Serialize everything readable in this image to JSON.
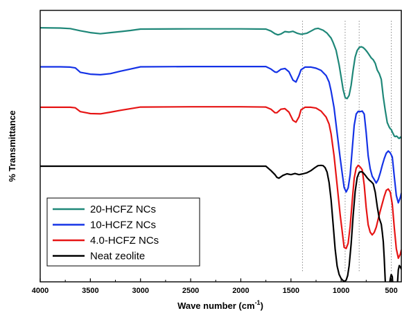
{
  "chart_data": {
    "type": "line",
    "xlabel": "Wave number (cm⁻¹)",
    "ylabel": "% Transmittance",
    "xlim": [
      4000,
      400
    ],
    "x_reversed": true,
    "x_ticks": [
      4000,
      3500,
      3000,
      2500,
      2000,
      1500,
      1000,
      500
    ],
    "y_ticks_shown": false,
    "grid": false,
    "legend": {
      "position": "bottom-left",
      "entries": [
        "20-HCFZ NCs",
        "10-HCFZ NCs",
        "4.0-HCFZ NCs",
        "Neat zeolite"
      ]
    },
    "reference_lines": [
      1385,
      960,
      820,
      500
    ],
    "y_units": "relative transmittance (top of plot = 100, bottom = 0)",
    "series": [
      {
        "name": "20-HCFZ NCs",
        "color": "#1e8778",
        "x": [
          4000,
          3800,
          3700,
          3600,
          3500,
          3400,
          3300,
          3200,
          3100,
          3000,
          2500,
          2000,
          1750,
          1700,
          1660,
          1630,
          1600,
          1560,
          1520,
          1480,
          1440,
          1400,
          1380,
          1340,
          1300,
          1260,
          1230,
          1180,
          1140,
          1100,
          1080,
          1050,
          1020,
          1000,
          980,
          960,
          940,
          920,
          900,
          880,
          860,
          840,
          820,
          800,
          780,
          760,
          740,
          720,
          700,
          680,
          660,
          640,
          620,
          600,
          580,
          560,
          540,
          520,
          510,
          500,
          490,
          480,
          470,
          460,
          450,
          440,
          430,
          420,
          410,
          400
        ],
        "y": [
          93.6,
          93.5,
          93.3,
          92.5,
          91.8,
          91.4,
          91.8,
          92.2,
          92.6,
          93.1,
          93.2,
          93.2,
          93.1,
          92.4,
          91.4,
          91.0,
          91.3,
          92.2,
          92.0,
          92.3,
          91.6,
          91.2,
          91.3,
          91.6,
          92.4,
          93.2,
          93.4,
          92.7,
          91.6,
          89.8,
          88.2,
          85.3,
          79.9,
          75.4,
          70.8,
          67.9,
          67.5,
          68.7,
          72.4,
          78.0,
          82.8,
          85.2,
          86.3,
          86.6,
          86.3,
          85.6,
          84.7,
          83.6,
          82.5,
          81.8,
          80.5,
          78.0,
          76.7,
          74.6,
          68.1,
          63.2,
          58.7,
          57.0,
          56.4,
          56.1,
          55.2,
          54.5,
          53.7,
          53.5,
          53.7,
          53.5,
          53.0,
          52.8,
          53.3,
          53.0
        ]
      },
      {
        "name": "10-HCFZ NCs",
        "color": "#1432e6",
        "x": [
          4000,
          3800,
          3700,
          3650,
          3600,
          3500,
          3400,
          3300,
          3200,
          3100,
          3000,
          2500,
          2000,
          1750,
          1700,
          1660,
          1640,
          1600,
          1560,
          1520,
          1480,
          1450,
          1420,
          1400,
          1360,
          1300,
          1250,
          1200,
          1150,
          1120,
          1100,
          1070,
          1040,
          1010,
          990,
          970,
          950,
          930,
          910,
          890,
          870,
          850,
          830,
          810,
          790,
          770,
          750,
          730,
          710,
          690,
          670,
          650,
          630,
          610,
          590,
          570,
          550,
          530,
          510,
          490,
          470,
          450,
          430,
          410,
          400
        ],
        "y": [
          79.2,
          79.2,
          79.1,
          78.8,
          77.2,
          76.5,
          76.3,
          76.7,
          77.6,
          78.4,
          79.2,
          79.3,
          79.3,
          79.3,
          78.4,
          77.3,
          77.2,
          78.3,
          78.6,
          77.4,
          74.3,
          73.6,
          76.1,
          78.1,
          79.1,
          79.1,
          78.7,
          77.9,
          76.0,
          73.6,
          70.3,
          64.1,
          54.8,
          45.8,
          40.2,
          34.8,
          33.1,
          34.6,
          39.5,
          48.6,
          57.6,
          61.8,
          62.8,
          62.7,
          62.9,
          61.8,
          55.0,
          46.4,
          41.7,
          38.9,
          37.7,
          36.4,
          37.7,
          40.1,
          42.9,
          45.4,
          47.4,
          48.2,
          47.5,
          46.0,
          38.7,
          31.8,
          29.1,
          31.1,
          32.6
        ]
      },
      {
        "name": "4.0-HCFZ NCs",
        "color": "#e61414",
        "x": [
          4000,
          3800,
          3700,
          3650,
          3600,
          3500,
          3400,
          3300,
          3200,
          3100,
          3000,
          2500,
          2000,
          1750,
          1700,
          1660,
          1640,
          1600,
          1560,
          1520,
          1480,
          1450,
          1420,
          1400,
          1360,
          1300,
          1250,
          1200,
          1150,
          1120,
          1100,
          1070,
          1040,
          1010,
          990,
          970,
          950,
          930,
          910,
          890,
          870,
          850,
          830,
          810,
          790,
          770,
          750,
          730,
          710,
          690,
          670,
          650,
          630,
          610,
          590,
          570,
          550,
          530,
          510,
          490,
          470,
          450,
          430,
          410,
          400
        ],
        "y": [
          64.3,
          64.3,
          64.3,
          64.1,
          62.7,
          62.0,
          61.9,
          62.5,
          63.2,
          63.8,
          64.4,
          64.5,
          64.5,
          64.4,
          63.6,
          62.3,
          62.3,
          63.6,
          63.8,
          62.5,
          59.5,
          58.8,
          60.8,
          63.4,
          64.3,
          64.3,
          64.0,
          62.9,
          60.7,
          58.1,
          54.5,
          46.4,
          35.6,
          24.9,
          18.8,
          12.7,
          12.3,
          14.2,
          20.4,
          29.5,
          38.1,
          41.9,
          42.9,
          42.3,
          41.3,
          35.7,
          27.4,
          21.0,
          18.3,
          17.3,
          18.2,
          20.1,
          23.2,
          26.1,
          28.8,
          31.5,
          33.7,
          34.2,
          33.0,
          28.6,
          19.9,
          12.2,
          8.7,
          10.2,
          11.7
        ]
      },
      {
        "name": "Neat zeolite",
        "color": "#000000",
        "x": [
          4000,
          3500,
          3000,
          2500,
          2000,
          1750,
          1700,
          1660,
          1640,
          1620,
          1580,
          1540,
          1500,
          1460,
          1420,
          1380,
          1340,
          1300,
          1260,
          1230,
          1200,
          1180,
          1160,
          1140,
          1120,
          1100,
          1080,
          1060,
          1040,
          1020,
          1000,
          980,
          965,
          950,
          935,
          920,
          900,
          880,
          860,
          840,
          820,
          800,
          780,
          760,
          740,
          720,
          700,
          680,
          660,
          640,
          620,
          600,
          590,
          580,
          570,
          560,
          550,
          540,
          530,
          520,
          510,
          500,
          490,
          480,
          470,
          460,
          450,
          440,
          430,
          420,
          410,
          400
        ],
        "y": [
          42.6,
          42.6,
          42.6,
          42.6,
          42.6,
          42.6,
          41.0,
          39.5,
          38.5,
          38.2,
          39.2,
          39.8,
          39.5,
          39.9,
          39.5,
          39.8,
          40.2,
          41.0,
          42.1,
          42.8,
          42.9,
          42.8,
          42.1,
          40.4,
          36.6,
          30.2,
          21.3,
          12.2,
          5.8,
          2.7,
          1.2,
          0.4,
          0.2,
          0.6,
          2.3,
          5.9,
          13.9,
          24.4,
          33.2,
          38.4,
          40.3,
          40.6,
          40.2,
          39.3,
          38.3,
          37.5,
          36.9,
          36.1,
          33.0,
          27.7,
          23.4,
          21.2,
          18.4,
          14.8,
          8.5,
          0.5,
          -4.5,
          -5.0,
          -4.5,
          -1.6,
          1.1,
          2.7,
          1.9,
          -3.6,
          -8.2,
          -9.5,
          -8.5,
          -1.6,
          4.4,
          6.0,
          5.5,
          4.7
        ]
      }
    ]
  }
}
